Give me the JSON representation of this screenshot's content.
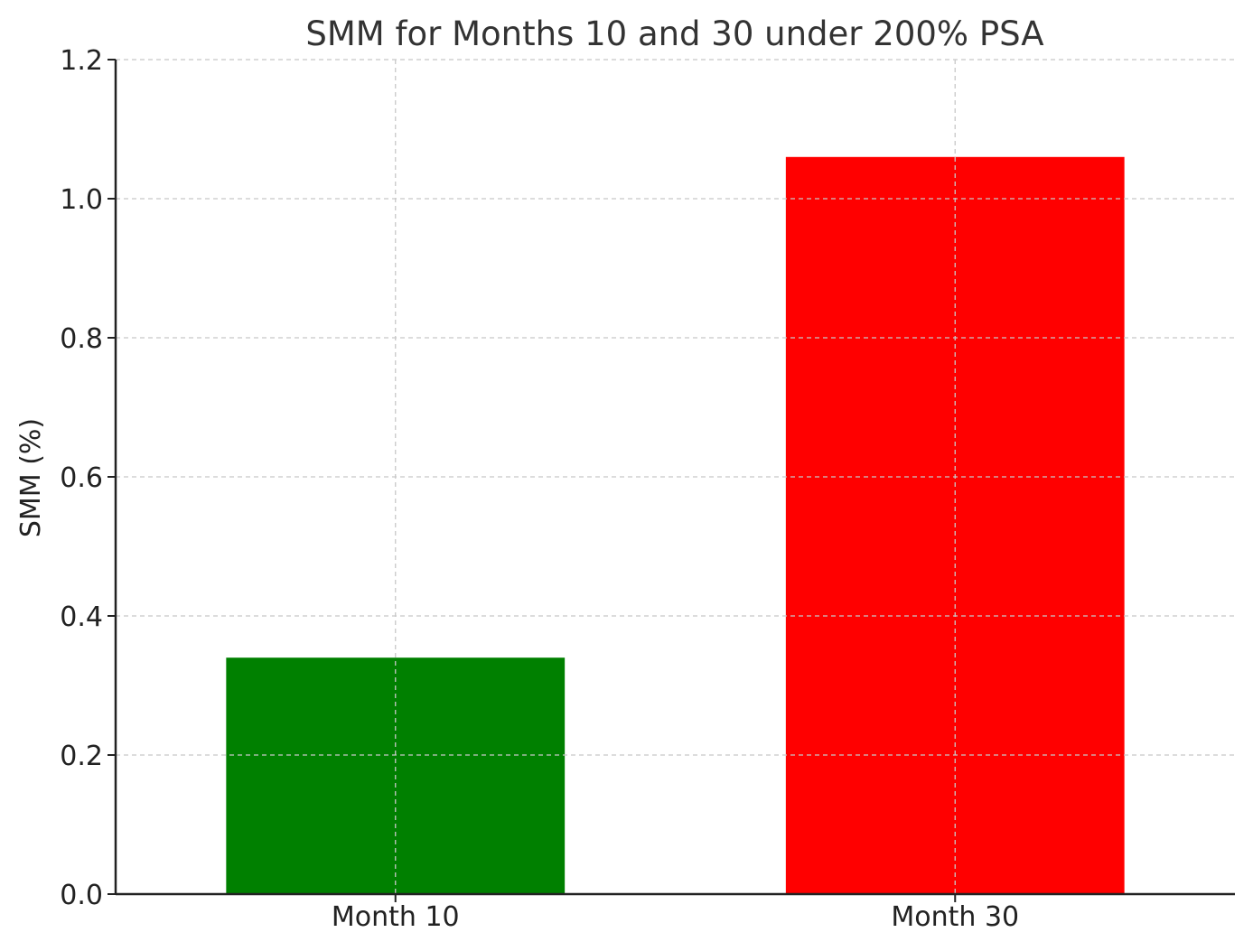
{
  "chart_data": {
    "type": "bar",
    "title": "SMM for Months 10 and 30 under 200% PSA",
    "xlabel": "",
    "ylabel": "SMM (%)",
    "categories": [
      "Month 10",
      "Month 30"
    ],
    "values": [
      0.34,
      1.06
    ],
    "colors": [
      "#008000",
      "#ff0000"
    ],
    "ylim": [
      0,
      1.2
    ],
    "yticks": [
      "0.0",
      "0.2",
      "0.4",
      "0.6",
      "0.8",
      "1.0",
      "1.2"
    ],
    "grid": true,
    "legend": "none"
  }
}
